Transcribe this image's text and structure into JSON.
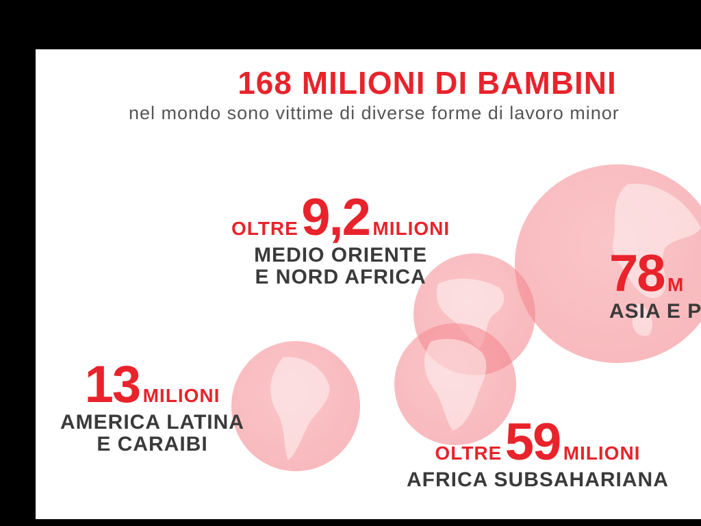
{
  "title": "168 MILIONI DI BAMBINI",
  "subtitle": "nel mondo sono vittime di diverse forme di lavoro minor",
  "colors": {
    "accent": "#e8232b",
    "text_dark": "#3a3a3a",
    "globe": "#f4a0a4",
    "frame": "#000000"
  },
  "regions": {
    "mena": {
      "prefix": "OLTRE",
      "value": "9,2",
      "unit": "MILIONI",
      "line1": "MEDIO ORIENTE",
      "line2": "E NORD AFRICA"
    },
    "asia": {
      "value": "78",
      "unit": "M",
      "line1": "ASIA E PA"
    },
    "latam": {
      "value": "13",
      "unit": "MILIONI",
      "line1": "AMERICA LATINA",
      "line2": "E CARAIBI"
    },
    "africa": {
      "prefix": "OLTRE",
      "value": "59",
      "unit": "MILIONI",
      "line1": "AFRICA SUBSAHARIANA"
    }
  }
}
